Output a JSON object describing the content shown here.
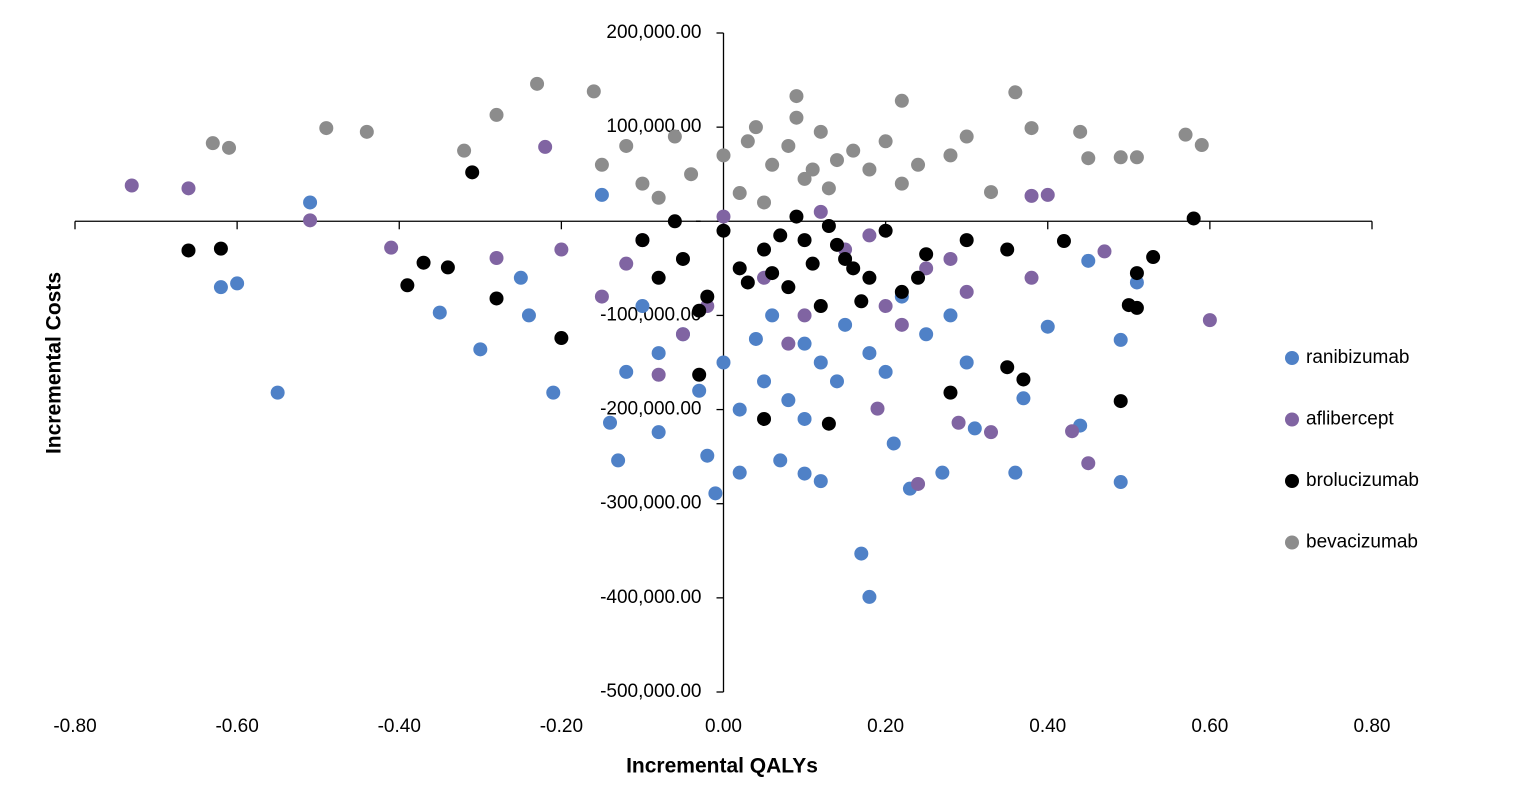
{
  "chart_data": {
    "type": "scatter",
    "x_label": "Incremental QALYs",
    "y_label": "Incremental Costs",
    "xlim": [
      -0.8,
      0.8
    ],
    "ylim": [
      -500000,
      200000
    ],
    "xticks": [
      {
        "value": -0.8,
        "label": "-0.80"
      },
      {
        "value": -0.6,
        "label": "-0.60"
      },
      {
        "value": -0.4,
        "label": "-0.40"
      },
      {
        "value": -0.2,
        "label": "-0.20"
      },
      {
        "value": 0,
        "label": "0.00"
      },
      {
        "value": 0.2,
        "label": "0.20"
      },
      {
        "value": 0.4,
        "label": "0.40"
      },
      {
        "value": 0.6,
        "label": "0.60"
      },
      {
        "value": 0.8,
        "label": "0.80"
      }
    ],
    "yticks": [
      {
        "value": 200000,
        "label": "200,000.00"
      },
      {
        "value": 100000,
        "label": "100,000.00"
      },
      {
        "value": 0,
        "label": "-"
      },
      {
        "value": -100000,
        "label": "-100,000.00"
      },
      {
        "value": -200000,
        "label": "-200,000.00"
      },
      {
        "value": -300000,
        "label": "-300,000.00"
      },
      {
        "value": -400000,
        "label": "-400,000.00"
      },
      {
        "value": -500000,
        "label": "-500,000.00"
      }
    ],
    "legend": "right",
    "series": [
      {
        "name": "ranibizumab",
        "color": "#4f81c7",
        "x": [
          -0.51,
          -0.62,
          -0.6,
          -0.55,
          -0.35,
          -0.3,
          -0.21,
          -0.13,
          -0.01,
          -0.02,
          0.02,
          0.07,
          0.1,
          0.12,
          0.17,
          0.18,
          0.21,
          0.23,
          0.27,
          0.36,
          0.49,
          0.44,
          0.45,
          0.51,
          0.49,
          0.4,
          0.37,
          0.31,
          -0.08,
          -0.14,
          -0.24,
          -0.25,
          -0.15,
          -0.05,
          0.0,
          0.05,
          0.1,
          0.15,
          0.2,
          -0.1,
          0.02,
          0.08,
          0.12,
          0.18,
          0.25,
          -0.03,
          0.06,
          0.14,
          0.22,
          -0.08,
          0.1,
          0.04,
          -0.12,
          0.28,
          0.3
        ],
        "values": [
          20000,
          -70000,
          -66000,
          -182000,
          -97000,
          -136000,
          -182000,
          -254000,
          -289000,
          -249000,
          -267000,
          -254000,
          -268000,
          -276000,
          -353000,
          -399000,
          -236000,
          -284000,
          -267000,
          -267000,
          -277000,
          -217000,
          -42000,
          -65000,
          -126000,
          -112000,
          -188000,
          -220000,
          -224000,
          -214000,
          -100000,
          -60000,
          28000,
          -120000,
          -150000,
          -170000,
          -130000,
          -110000,
          -160000,
          -90000,
          -200000,
          -190000,
          -150000,
          -140000,
          -120000,
          -180000,
          -100000,
          -170000,
          -80000,
          -140000,
          -210000,
          -125000,
          -160000,
          -100000,
          -150000
        ]
      },
      {
        "name": "aflibercept",
        "color": "#8064a2",
        "x": [
          -0.73,
          -0.66,
          -0.51,
          -0.41,
          -0.28,
          -0.22,
          0.47,
          0.6,
          0.43,
          0.45,
          0.24,
          0.33,
          0.19,
          0.29,
          -0.08,
          0.4,
          0.38,
          0.38,
          -0.2,
          -0.15,
          -0.1,
          -0.05,
          0.0,
          0.05,
          0.1,
          0.15,
          0.2,
          0.25,
          0.3,
          -0.12,
          0.08,
          0.18,
          -0.02,
          0.12,
          0.22,
          0.28
        ],
        "values": [
          38000,
          35000,
          1000,
          -28000,
          -39000,
          79000,
          -32000,
          -105000,
          -223000,
          -257000,
          -279000,
          -224000,
          -199000,
          -214000,
          -163000,
          28000,
          27000,
          -60000,
          -30000,
          -80000,
          -20000,
          -120000,
          5000,
          -60000,
          -100000,
          -30000,
          -90000,
          -50000,
          -75000,
          -45000,
          -130000,
          -15000,
          -90000,
          10000,
          -110000,
          -40000
        ]
      },
      {
        "name": "brolucizumab",
        "color": "#000000",
        "x": [
          -0.66,
          -0.62,
          -0.37,
          -0.34,
          -0.39,
          -0.31,
          -0.28,
          -0.2,
          -0.03,
          0.05,
          0.13,
          0.49,
          0.58,
          0.53,
          0.51,
          0.51,
          0.5,
          0.37,
          0.35,
          0.28,
          0.42,
          -0.1,
          -0.08,
          -0.05,
          -0.02,
          0.0,
          0.02,
          0.05,
          0.08,
          0.1,
          0.12,
          0.15,
          0.18,
          0.2,
          0.22,
          0.25,
          -0.06,
          0.03,
          0.07,
          0.11,
          0.14,
          0.17,
          -0.03,
          0.06,
          0.09,
          0.13,
          0.16,
          0.24,
          0.3,
          0.35
        ],
        "values": [
          -31000,
          -29000,
          -44000,
          -49000,
          -68000,
          52000,
          -82000,
          -124000,
          -163000,
          -210000,
          -215000,
          -191000,
          3000,
          -38000,
          -55000,
          -92000,
          -89000,
          -168000,
          -155000,
          -182000,
          -21000,
          -20000,
          -60000,
          -40000,
          -80000,
          -10000,
          -50000,
          -30000,
          -70000,
          -20000,
          -90000,
          -40000,
          -60000,
          -10000,
          -75000,
          -35000,
          0,
          -65000,
          -15000,
          -45000,
          -25000,
          -85000,
          -95000,
          -55000,
          5000,
          -5000,
          -50000,
          -60000,
          -20000,
          -30000
        ]
      },
      {
        "name": "bevacizumab",
        "color": "#8c8c8c",
        "x": [
          -0.63,
          -0.61,
          -0.49,
          -0.44,
          -0.32,
          -0.28,
          -0.23,
          -0.16,
          0.09,
          0.22,
          0.36,
          0.57,
          0.59,
          0.51,
          0.49,
          0.45,
          0.44,
          0.38,
          0.33,
          -0.15,
          -0.12,
          -0.1,
          -0.06,
          -0.04,
          0.0,
          0.02,
          0.04,
          0.06,
          0.08,
          0.1,
          0.12,
          0.14,
          0.16,
          0.18,
          0.2,
          0.24,
          0.28,
          -0.08,
          0.05,
          0.09,
          0.13,
          0.03,
          0.11,
          0.22,
          0.3
        ],
        "values": [
          83000,
          78000,
          99000,
          95000,
          75000,
          113000,
          146000,
          138000,
          133000,
          128000,
          137000,
          92000,
          81000,
          68000,
          68000,
          67000,
          95000,
          99000,
          31000,
          60000,
          80000,
          40000,
          90000,
          50000,
          70000,
          30000,
          100000,
          60000,
          80000,
          45000,
          95000,
          65000,
          75000,
          55000,
          85000,
          60000,
          70000,
          25000,
          20000,
          110000,
          35000,
          85000,
          55000,
          40000,
          90000
        ]
      }
    ]
  }
}
